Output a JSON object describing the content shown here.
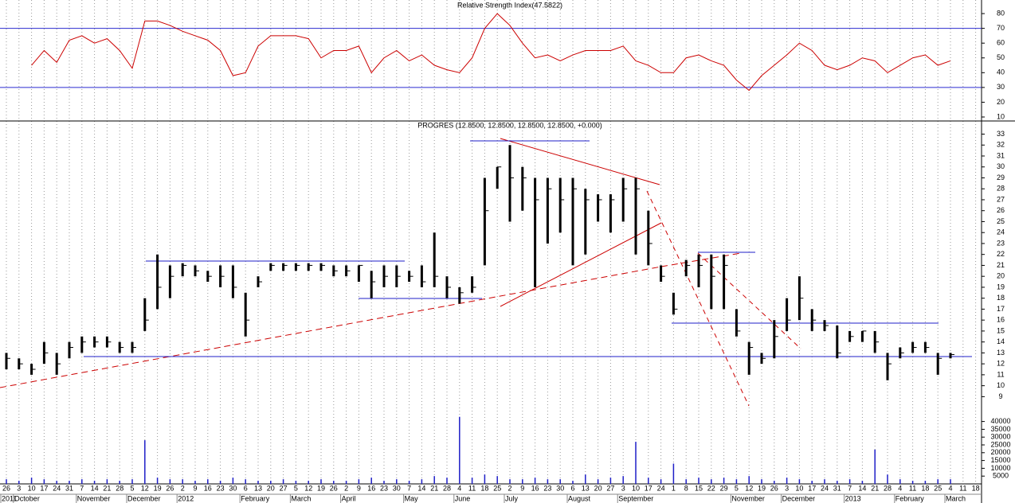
{
  "chart_data": [
    {
      "type": "line",
      "title": "Relative Strength Index(47.5822)",
      "color": "#cc0000",
      "ylim": [
        7.3,
        89.2
      ],
      "yticks": [
        10,
        20,
        30,
        40,
        50,
        60,
        70,
        80
      ],
      "reference_lines": [
        30,
        70
      ],
      "reference_color": "#2b2bd0",
      "values": [
        null,
        null,
        45,
        55,
        47,
        62,
        65,
        60,
        63,
        55,
        43,
        75,
        75,
        72,
        68,
        65,
        62,
        55,
        38,
        40,
        58,
        65,
        65,
        65,
        63,
        50,
        55,
        55,
        58,
        40,
        50,
        55,
        48,
        52,
        45,
        42,
        40,
        50,
        70,
        80,
        72,
        60,
        50,
        52,
        48,
        52,
        55,
        55,
        55,
        58,
        48,
        45,
        40,
        40,
        50,
        52,
        48,
        45,
        35,
        28,
        38,
        45,
        52,
        60,
        55,
        45,
        42,
        45,
        50,
        48,
        40,
        45,
        50,
        52,
        45,
        48,
        null,
        null
      ]
    },
    {
      "type": "hlc",
      "title": "PROGRES (12.8500, 12.8500, 12.8500, 12.8500, +0.000)",
      "color": "#000000",
      "ylim": [
        8.3,
        34.2
      ],
      "yticks": [
        9,
        10,
        11,
        12,
        13,
        14,
        15,
        16,
        17,
        18,
        19,
        20,
        21,
        22,
        23,
        24,
        25,
        26,
        27,
        28,
        29,
        30,
        31,
        32,
        33
      ],
      "high": [
        13,
        12.5,
        12,
        14,
        13,
        14,
        14.5,
        14.5,
        14.5,
        14,
        14,
        18,
        22,
        21,
        21.2,
        21,
        20.5,
        21,
        21,
        18.5,
        20,
        21.2,
        21.2,
        21.2,
        21.2,
        21.2,
        21,
        21,
        21,
        20.5,
        21,
        21,
        20.5,
        21,
        24,
        20,
        19,
        20,
        29,
        30,
        32,
        30,
        29,
        29,
        29,
        29,
        28,
        27.5,
        27.5,
        29,
        29,
        26,
        21,
        18.5,
        21.5,
        22,
        22,
        22,
        17,
        14,
        13,
        16,
        18,
        20,
        17,
        16,
        15.5,
        15,
        15,
        15,
        13,
        13.5,
        14,
        14,
        13,
        13,
        null,
        null
      ],
      "low": [
        11.5,
        11.5,
        11,
        12,
        11,
        12.5,
        13,
        13.5,
        13.5,
        13,
        13,
        15,
        17,
        18,
        20,
        20,
        19.5,
        19,
        18,
        14.5,
        19,
        20.5,
        20.5,
        20.5,
        20.5,
        20.5,
        20,
        20,
        19.5,
        18,
        19,
        19,
        19.5,
        19,
        19,
        18,
        17.5,
        18.5,
        21,
        28,
        25,
        26,
        19,
        23,
        24,
        21,
        22,
        25,
        24,
        25,
        22,
        21,
        19.5,
        16.5,
        20,
        19,
        17,
        17,
        14.5,
        11,
        12,
        12.5,
        15,
        16,
        15,
        15,
        12.5,
        14,
        14,
        13,
        10.5,
        12.5,
        13,
        13,
        11,
        12.5,
        null,
        null
      ],
      "close": [
        12.5,
        12,
        11.5,
        13,
        12,
        13.5,
        14,
        14,
        14,
        13.5,
        13.5,
        16,
        19,
        20,
        21,
        20.5,
        20,
        20,
        19,
        16,
        19.5,
        21,
        21,
        21,
        21,
        21,
        20.5,
        20.5,
        21,
        19.5,
        20,
        20,
        20,
        19.5,
        20,
        19,
        18.5,
        19,
        26,
        30,
        29,
        29,
        27,
        28,
        27,
        28,
        27,
        27,
        27,
        28,
        28,
        23,
        20,
        17,
        21,
        21,
        20,
        21,
        15,
        13.5,
        12.5,
        14.5,
        16,
        18,
        16,
        15.5,
        13,
        14.5,
        15,
        14,
        12,
        13,
        13.5,
        13.5,
        12.5,
        12.85,
        null,
        null
      ]
    },
    {
      "type": "bar",
      "color": "#1f1fc8",
      "ylim": [
        0,
        50000
      ],
      "yticks": [
        5000,
        10000,
        15000,
        20000,
        25000,
        30000,
        35000,
        40000
      ],
      "categories": [
        "26",
        "3",
        "10",
        "17",
        "24",
        "31",
        "7",
        "14",
        "21",
        "28",
        "5",
        "12",
        "19",
        "26",
        "2",
        "9",
        "16",
        "23",
        "30",
        "6",
        "13",
        "20",
        "27",
        "5",
        "12",
        "19",
        "26",
        "2",
        "9",
        "16",
        "23",
        "30",
        "7",
        "14",
        "21",
        "28",
        "4",
        "11",
        "18",
        "25",
        "2",
        "9",
        "16",
        "23",
        "30",
        "6",
        "13",
        "20",
        "27",
        "3",
        "10",
        "17",
        "24",
        "1",
        "8",
        "15",
        "22",
        "29",
        "5",
        "12",
        "19",
        "26",
        "3",
        "10",
        "17",
        "24",
        "31",
        "7",
        "14",
        "21",
        "28",
        "4",
        "11",
        "18",
        "25",
        "4",
        "11",
        "18"
      ],
      "months": [
        "2011",
        "October",
        null,
        null,
        null,
        null,
        "November",
        null,
        null,
        null,
        "December",
        null,
        null,
        null,
        "2012",
        null,
        null,
        null,
        null,
        "February",
        null,
        null,
        null,
        "March",
        null,
        null,
        null,
        "April",
        null,
        null,
        null,
        null,
        "May",
        null,
        null,
        null,
        "June",
        null,
        null,
        null,
        "July",
        null,
        null,
        null,
        null,
        "August",
        null,
        null,
        null,
        "September",
        null,
        null,
        null,
        null,
        null,
        null,
        null,
        null,
        "November",
        null,
        null,
        null,
        "December",
        null,
        null,
        null,
        null,
        "2013",
        null,
        null,
        null,
        "February",
        null,
        null,
        null,
        "March",
        null,
        null
      ],
      "values": [
        3000,
        2000,
        4000,
        3000,
        2000,
        2000,
        3000,
        2000,
        3000,
        2000,
        3000,
        28000,
        4000,
        3000,
        3000,
        2000,
        3000,
        2000,
        4000,
        3000,
        2000,
        2000,
        3000,
        2000,
        2000,
        3000,
        2000,
        2000,
        3000,
        4000,
        2000,
        3000,
        2000,
        3000,
        5000,
        4000,
        43000,
        4000,
        6000,
        5000,
        3000,
        3000,
        4000,
        3000,
        3000,
        2000,
        6000,
        3000,
        4000,
        5000,
        27000,
        4000,
        3000,
        13000,
        3000,
        4000,
        3000,
        4000,
        3000,
        5000,
        3000,
        2000,
        4000,
        3000,
        2000,
        3000,
        2000,
        3000,
        2000,
        22000,
        6000,
        3000,
        2000,
        2000,
        3000,
        3000,
        null,
        null
      ]
    }
  ]
}
